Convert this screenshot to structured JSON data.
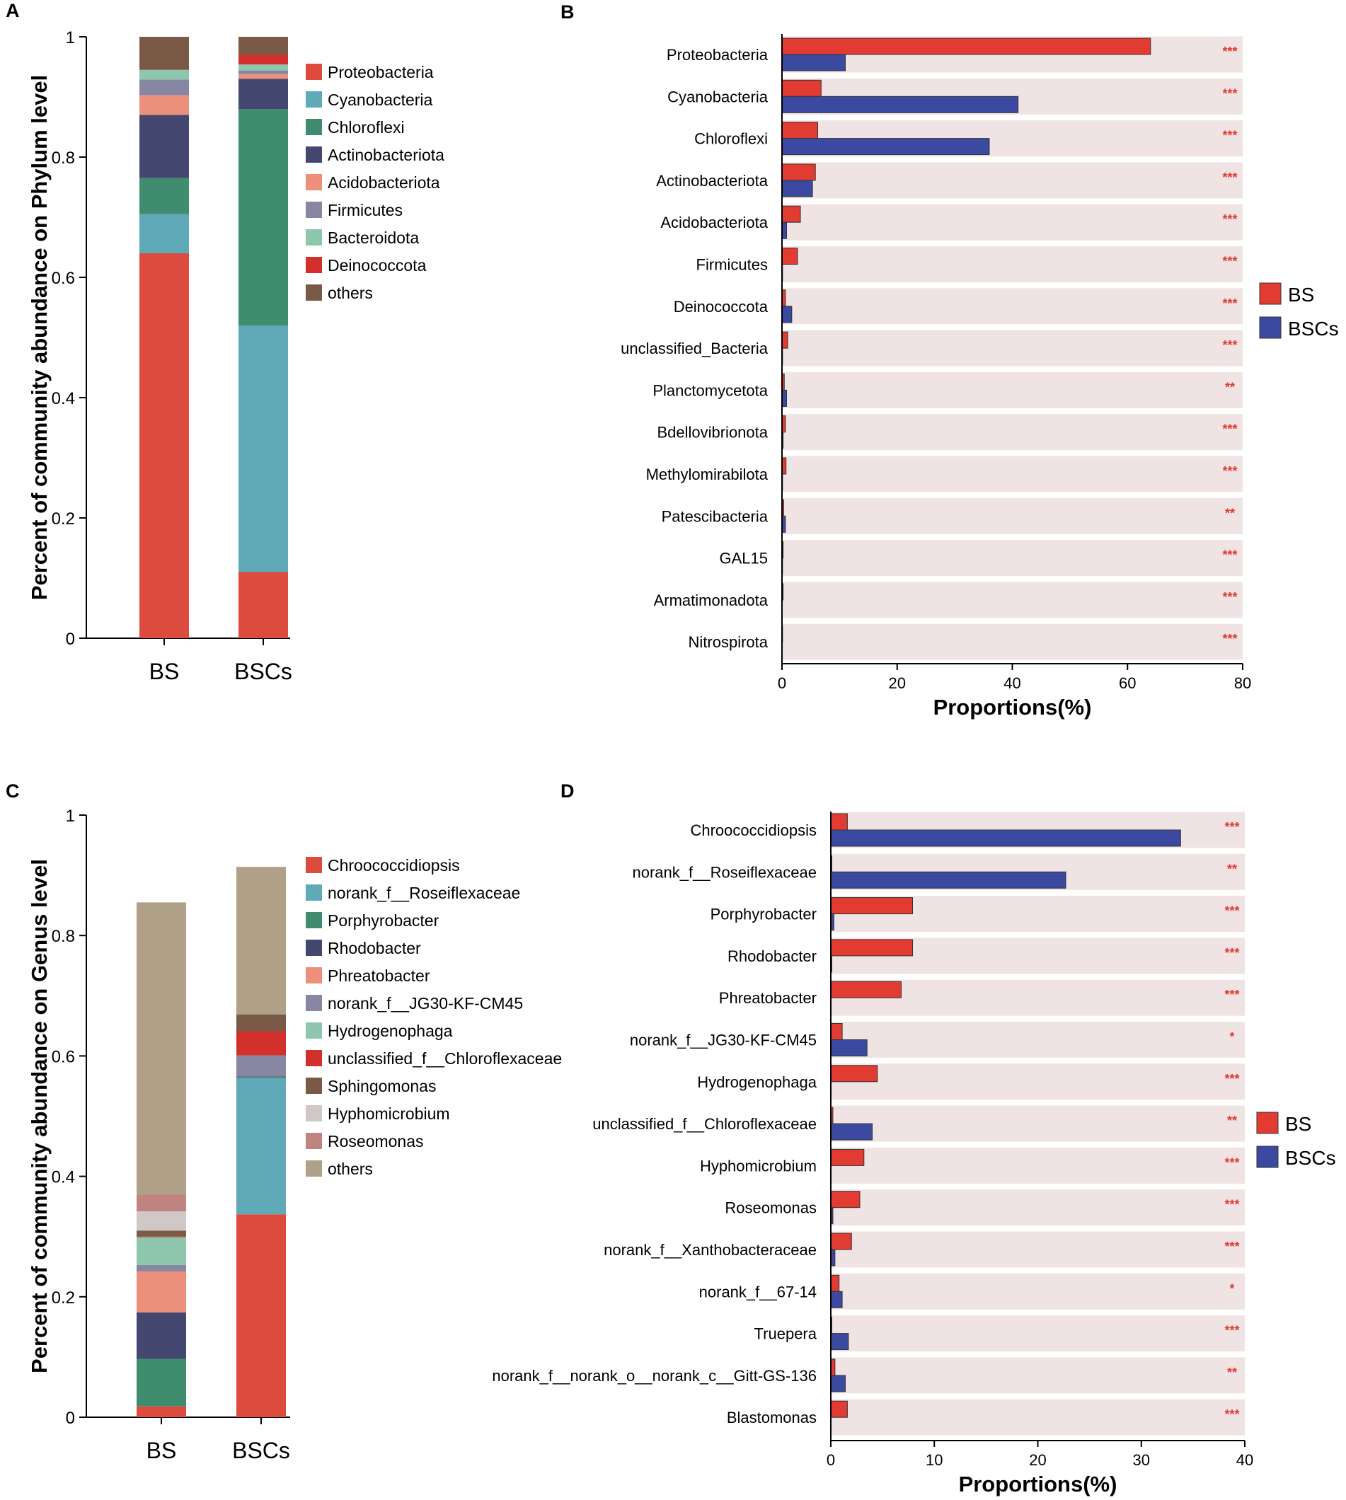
{
  "colors": {
    "BS": "#e23b32",
    "BSCs": "#3b4aa0",
    "band": "#efe4e3",
    "significance": "#e23b32"
  },
  "chart_data": [
    {
      "panel": "A",
      "type": "bar",
      "stacked": true,
      "title": "",
      "xlabel": "",
      "ylabel": "Percent of community abundance on Phylum level",
      "ylim": [
        0,
        1
      ],
      "yticks": [
        "0",
        "0.2",
        "0.4",
        "0.6",
        "0.8",
        "1"
      ],
      "categories": [
        "BS",
        "BSCs"
      ],
      "series": [
        {
          "name": "Proteobacteria",
          "color": "#dc4b3e",
          "values": [
            0.64,
            0.11
          ]
        },
        {
          "name": "Cyanobacteria",
          "color": "#5fa9b9",
          "values": [
            0.065,
            0.41
          ]
        },
        {
          "name": "Chloroflexi",
          "color": "#3f8c6e",
          "values": [
            0.06,
            0.36
          ]
        },
        {
          "name": "Actinobacteriota",
          "color": "#444870",
          "values": [
            0.105,
            0.05
          ]
        },
        {
          "name": "Acidobacteriota",
          "color": "#ec907b",
          "values": [
            0.033,
            0.008
          ]
        },
        {
          "name": "Firmicutes",
          "color": "#8787a3",
          "values": [
            0.026,
            0.006
          ]
        },
        {
          "name": "Bacteroidota",
          "color": "#8fc7ae",
          "values": [
            0.016,
            0.01
          ]
        },
        {
          "name": "Deinococcota",
          "color": "#d1302c",
          "values": [
            0.0,
            0.016
          ]
        },
        {
          "name": "others",
          "color": "#7a5a47",
          "values": [
            0.055,
            0.03
          ]
        }
      ],
      "legend_position": "right"
    },
    {
      "panel": "B",
      "type": "bar",
      "orientation": "horizontal",
      "xlabel": "Proportions(%)",
      "xlim": [
        0,
        80
      ],
      "xticks": [
        "0",
        "20",
        "40",
        "60",
        "80"
      ],
      "categories": [
        "Proteobacteria",
        "Cyanobacteria",
        "Chloroflexi",
        "Actinobacteriota",
        "Acidobacteriota",
        "Firmicutes",
        "Deinococcota",
        "unclassified_Bacteria",
        "Planctomycetota",
        "Bdellovibrionota",
        "Methylomirabilota",
        "Patescibacteria",
        "GAL15",
        "Armatimonadota",
        "Nitrospirota"
      ],
      "series": [
        {
          "name": "BS",
          "values": [
            64,
            6.8,
            6.2,
            5.8,
            3.2,
            2.7,
            0.6,
            1.0,
            0.4,
            0.6,
            0.7,
            0.3,
            0.2,
            0.2,
            0.1
          ]
        },
        {
          "name": "BSCs",
          "values": [
            11,
            41,
            36,
            5.3,
            0.8,
            0.1,
            1.7,
            0.1,
            0.8,
            0.2,
            0.1,
            0.6,
            0.1,
            0.0,
            0.0
          ]
        }
      ],
      "significance": [
        "***",
        "***",
        "***",
        "***",
        "***",
        "***",
        "***",
        "***",
        "**",
        "***",
        "***",
        "**",
        "***",
        "***",
        "***"
      ],
      "legend": [
        "BS",
        "BSCs"
      ],
      "legend_position": "right"
    },
    {
      "panel": "C",
      "type": "bar",
      "stacked": true,
      "xlabel": "",
      "ylabel": "Percent of community abundance on Genus level",
      "ylim": [
        0,
        1
      ],
      "yticks": [
        "0",
        "0.2",
        "0.4",
        "0.6",
        "0.8",
        "1"
      ],
      "categories": [
        "BS",
        "BSCs"
      ],
      "series": [
        {
          "name": "Chroococcidiopsis",
          "color": "#dc4b3e",
          "values": [
            0.018,
            0.337
          ]
        },
        {
          "name": "norank_f__Roseiflexaceae",
          "color": "#5fa9b9",
          "values": [
            0.0,
            0.226
          ]
        },
        {
          "name": "Porphyrobacter",
          "color": "#3f8c6e",
          "values": [
            0.079,
            0.002
          ]
        },
        {
          "name": "Rhodobacter",
          "color": "#444870",
          "values": [
            0.077,
            0.001
          ]
        },
        {
          "name": "Phreatobacter",
          "color": "#ec907b",
          "values": [
            0.068,
            0.0
          ]
        },
        {
          "name": "norank_f__JG30-KF-CM45",
          "color": "#8787a3",
          "values": [
            0.011,
            0.035
          ]
        },
        {
          "name": "Hydrogenophaga",
          "color": "#8fc7ae",
          "values": [
            0.046,
            0.0
          ]
        },
        {
          "name": "unclassified_f__Chloroflexaceae",
          "color": "#d1302c",
          "values": [
            0.001,
            0.04
          ]
        },
        {
          "name": "Sphingomonas",
          "color": "#7a5a47",
          "values": [
            0.01,
            0.028
          ]
        },
        {
          "name": "Hyphomicrobium",
          "color": "#d0c8c4",
          "values": [
            0.032,
            0.0
          ]
        },
        {
          "name": "Roseomonas",
          "color": "#bf8380",
          "values": [
            0.028,
            0.0
          ]
        },
        {
          "name": "others",
          "color": "#b0a088",
          "values": [
            0.485,
            0.245
          ]
        }
      ],
      "legend_position": "right"
    },
    {
      "panel": "D",
      "type": "bar",
      "orientation": "horizontal",
      "xlabel": "Proportions(%)",
      "xlim": [
        0,
        40
      ],
      "xticks": [
        "0",
        "10",
        "20",
        "30",
        "40"
      ],
      "categories": [
        "Chroococcidiopsis",
        "norank_f__Roseiflexaceae",
        "Porphyrobacter",
        "Rhodobacter",
        "Phreatobacter",
        "norank_f__JG30-KF-CM45",
        "Hydrogenophaga",
        "unclassified_f__Chloroflexaceae",
        "Hyphomicrobium",
        "Roseomonas",
        "norank_f__Xanthobacteraceae",
        "norank_f__67-14",
        "Truepera",
        "norank_f__norank_o__norank_c__Gitt-GS-136",
        "Blastomonas"
      ],
      "series": [
        {
          "name": "BS",
          "values": [
            1.6,
            0.1,
            7.9,
            7.9,
            6.8,
            1.1,
            4.5,
            0.2,
            3.2,
            2.8,
            2.0,
            0.8,
            0.1,
            0.4,
            1.6
          ]
        },
        {
          "name": "BSCs",
          "values": [
            33.8,
            22.7,
            0.3,
            0.1,
            0.0,
            3.5,
            0.0,
            4.0,
            0.0,
            0.2,
            0.4,
            1.1,
            1.7,
            1.4,
            0.0
          ]
        }
      ],
      "significance": [
        "***",
        "**",
        "***",
        "***",
        "***",
        "*",
        "***",
        "**",
        "***",
        "***",
        "***",
        "*",
        "***",
        "**",
        "***"
      ],
      "legend": [
        "BS",
        "BSCs"
      ],
      "legend_position": "right"
    }
  ]
}
